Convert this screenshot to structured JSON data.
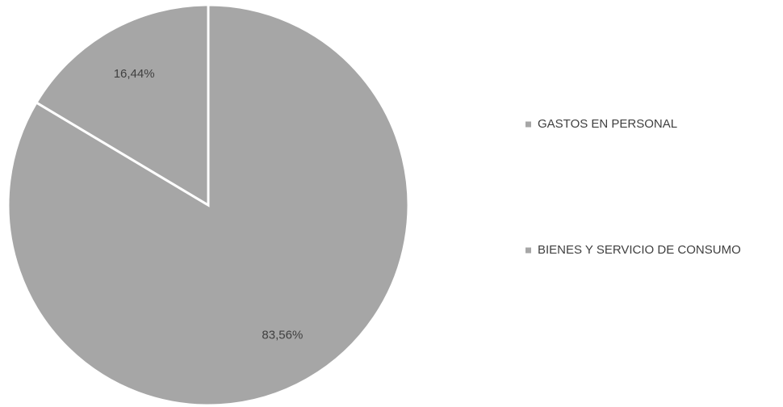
{
  "chart_data": {
    "type": "pie",
    "categories": [
      "GASTOS EN PERSONAL",
      "BIENES Y SERVICIO DE CONSUMO"
    ],
    "values": [
      83.56,
      16.44
    ],
    "value_labels": [
      "83,56%",
      "16,44%"
    ],
    "colors": [
      "#a6a6a6",
      "#a6a6a6"
    ],
    "legend": "right"
  }
}
